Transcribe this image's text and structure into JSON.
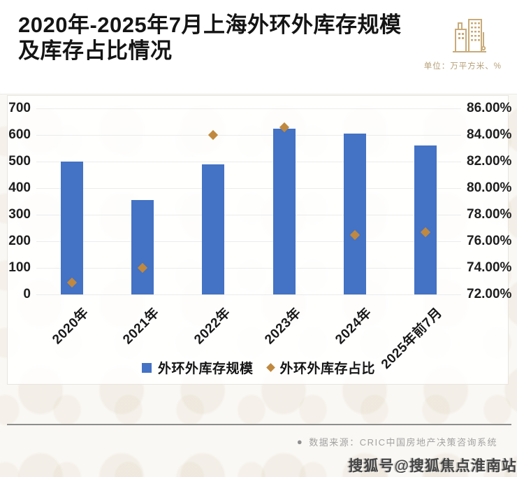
{
  "header": {
    "title_line1": "2020年-2025年7月上海外环外库存规模",
    "title_line2": "及库存占比情况",
    "unit_label": "单位：万平方米、%",
    "icon": "buildings-icon"
  },
  "chart_data": {
    "type": "bar",
    "title": "2020年-2025年7月上海外环外库存规模及库存占比情况",
    "categories": [
      "2020年",
      "2021年",
      "2022年",
      "2023年",
      "2024年",
      "2025年前7月"
    ],
    "series": [
      {
        "name": "外环外库存规模",
        "type": "bar",
        "axis": "left",
        "marker": "square",
        "color": "#4472c4",
        "values": [
          500,
          355,
          490,
          625,
          605,
          560
        ]
      },
      {
        "name": "外环外库存占比",
        "type": "scatter",
        "axis": "right",
        "marker": "diamond",
        "color": "#c0893f",
        "values": [
          72.9,
          74.0,
          84.0,
          84.6,
          76.5,
          76.7
        ]
      }
    ],
    "left_axis": {
      "min": 0,
      "max": 700,
      "ticks": [
        "700",
        "600",
        "500",
        "400",
        "300",
        "200",
        "100",
        "0"
      ]
    },
    "right_axis": {
      "min": 72,
      "max": 86,
      "ticks": [
        "86.00%",
        "84.00%",
        "82.00%",
        "80.00%",
        "78.00%",
        "76.00%",
        "74.00%",
        "72.00%"
      ]
    },
    "grid": true,
    "legend_position": "bottom",
    "unit": "万平方米、%"
  },
  "footer": {
    "source_bullet": "●",
    "source": "数据来源：CRIC中国房地产决策咨询系统",
    "watermark": "搜狐号@搜狐焦点淮南站"
  }
}
